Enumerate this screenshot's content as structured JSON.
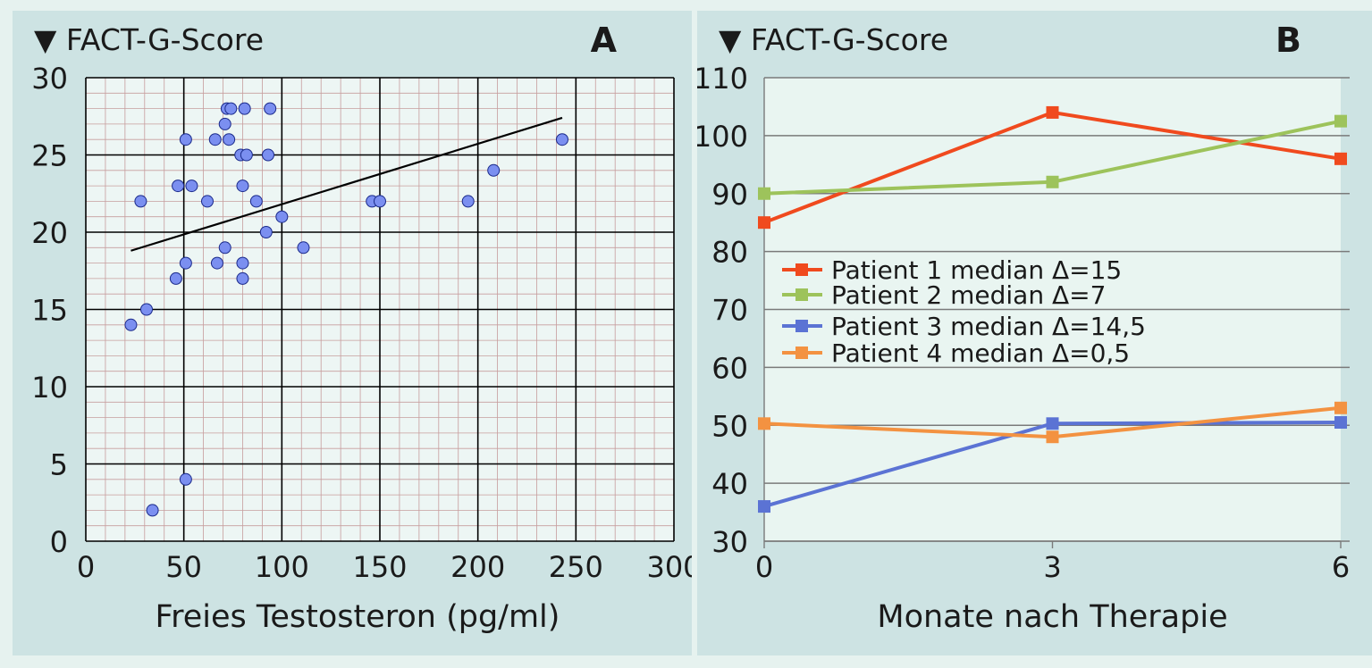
{
  "chart_data": [
    {
      "type": "scatter",
      "panel_label": "A",
      "ylabel": "▼ FACT-G-Score",
      "xlabel": "Freies Testosteron (pg/ml)",
      "xlim": [
        0,
        300
      ],
      "ylim": [
        0,
        30
      ],
      "xticks": [
        0,
        50,
        100,
        150,
        200,
        250,
        300
      ],
      "yticks": [
        0,
        5,
        10,
        15,
        20,
        25,
        30
      ],
      "grid": true,
      "points": [
        {
          "x": 23,
          "y": 14
        },
        {
          "x": 28,
          "y": 22
        },
        {
          "x": 31,
          "y": 15
        },
        {
          "x": 34,
          "y": 2
        },
        {
          "x": 46,
          "y": 17
        },
        {
          "x": 47,
          "y": 23
        },
        {
          "x": 51,
          "y": 26
        },
        {
          "x": 51,
          "y": 18
        },
        {
          "x": 51,
          "y": 4
        },
        {
          "x": 54,
          "y": 23
        },
        {
          "x": 62,
          "y": 22
        },
        {
          "x": 66,
          "y": 26
        },
        {
          "x": 67,
          "y": 18
        },
        {
          "x": 71,
          "y": 27
        },
        {
          "x": 71,
          "y": 19
        },
        {
          "x": 72,
          "y": 28
        },
        {
          "x": 73,
          "y": 26
        },
        {
          "x": 74,
          "y": 28
        },
        {
          "x": 79,
          "y": 25
        },
        {
          "x": 80,
          "y": 23
        },
        {
          "x": 80,
          "y": 18
        },
        {
          "x": 80,
          "y": 17
        },
        {
          "x": 81,
          "y": 28
        },
        {
          "x": 82,
          "y": 25
        },
        {
          "x": 87,
          "y": 22
        },
        {
          "x": 92,
          "y": 20
        },
        {
          "x": 93,
          "y": 25
        },
        {
          "x": 94,
          "y": 28
        },
        {
          "x": 100,
          "y": 21
        },
        {
          "x": 111,
          "y": 19
        },
        {
          "x": 146,
          "y": 22
        },
        {
          "x": 150,
          "y": 22
        },
        {
          "x": 195,
          "y": 22
        },
        {
          "x": 208,
          "y": 24
        },
        {
          "x": 243,
          "y": 26
        }
      ],
      "trendline": {
        "x": [
          23,
          243
        ],
        "y": [
          18.8,
          27.4
        ]
      },
      "marker_color": "#7b8ff0"
    },
    {
      "type": "line",
      "panel_label": "B",
      "ylabel": "▼ FACT-G-Score",
      "xlabel": "Monate nach Therapie",
      "x": [
        0,
        3,
        6
      ],
      "xlim": [
        0,
        6
      ],
      "ylim": [
        30,
        110
      ],
      "xticks": [
        0,
        3,
        6
      ],
      "yticks": [
        30,
        40,
        50,
        60,
        70,
        80,
        90,
        100,
        110
      ],
      "legend_position": "middle-left",
      "series": [
        {
          "name": "Patient 1 median Δ=15",
          "values": [
            85,
            104,
            96
          ],
          "color": "#f04a1e"
        },
        {
          "name": "Patient 2 median Δ=7",
          "values": [
            90,
            92,
            102.5
          ],
          "color": "#9dc35b"
        },
        {
          "name": "Patient 3 median Δ=14,5",
          "values": [
            36,
            50.3,
            50.5
          ],
          "color": "#5b73d4"
        },
        {
          "name": "Patient 4 median Δ=0,5",
          "values": [
            50.3,
            48,
            53
          ],
          "color": "#f39241"
        }
      ]
    }
  ]
}
